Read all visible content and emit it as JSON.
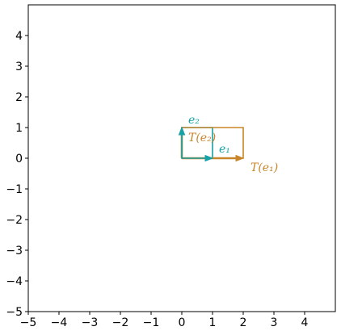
{
  "chart_data": {
    "type": "line",
    "title": "",
    "xlabel": "",
    "ylabel": "",
    "xlim": [
      -5,
      5
    ],
    "ylim": [
      -5,
      5
    ],
    "grid": false,
    "aspect": "equal",
    "x_ticks": [
      -5,
      -4,
      -3,
      -2,
      -1,
      0,
      1,
      2,
      3,
      4
    ],
    "y_ticks": [
      -5,
      -4,
      -3,
      -2,
      -1,
      0,
      1,
      2,
      3,
      4
    ],
    "x_tick_labels": [
      "−5",
      "−4",
      "−3",
      "−2",
      "−1",
      "0",
      "1",
      "2",
      "3",
      "4"
    ],
    "y_tick_labels": [
      "−5",
      "−4",
      "−3",
      "−2",
      "−1",
      "0",
      "1",
      "2",
      "3",
      "4"
    ],
    "colors": {
      "basis": "#17a2a8",
      "transformed": "#c8862a"
    },
    "shapes": [
      {
        "kind": "unit-square",
        "color": "basis",
        "points": [
          [
            0,
            0
          ],
          [
            1,
            0
          ],
          [
            1,
            1
          ],
          [
            0,
            1
          ]
        ]
      },
      {
        "kind": "transformed-square",
        "color": "transformed",
        "points": [
          [
            0,
            0
          ],
          [
            2,
            0
          ],
          [
            2,
            1
          ],
          [
            0,
            1
          ]
        ]
      }
    ],
    "vectors": [
      {
        "label": "e1",
        "display": "e₁",
        "from": [
          0,
          0
        ],
        "to": [
          1,
          0
        ],
        "color": "basis"
      },
      {
        "label": "e2",
        "display": "e₂",
        "from": [
          0,
          0
        ],
        "to": [
          0,
          1
        ],
        "color": "basis"
      },
      {
        "label": "T(e1)",
        "display": "T(e₁)",
        "from": [
          0,
          0
        ],
        "to": [
          2,
          0
        ],
        "color": "transformed"
      },
      {
        "label": "T(e2)",
        "display": "T(e₂)",
        "from": [
          0,
          0
        ],
        "to": [
          0,
          1
        ],
        "color": "transformed"
      }
    ]
  }
}
